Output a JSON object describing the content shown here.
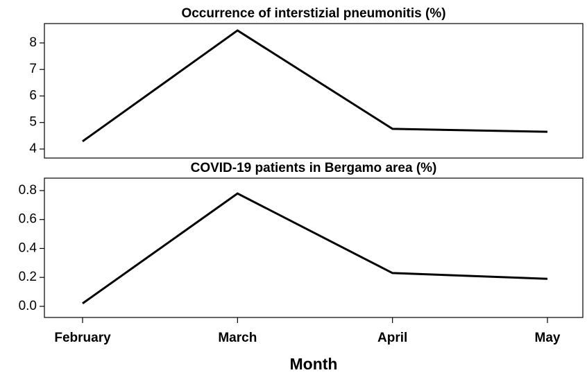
{
  "chart_data": [
    {
      "type": "line",
      "title": "Occurrence of interstizial pneumonitis (%)",
      "values": [
        4.29,
        8.47,
        4.76,
        4.65
      ],
      "color": "#000000",
      "ylim": [
        3.66,
        8.73
      ],
      "yticks": [
        4,
        5,
        6,
        7,
        8
      ]
    },
    {
      "type": "line",
      "title": "COVID-19 patients in Bergamo area (%)",
      "categories": [
        "February",
        "March",
        "April",
        "May"
      ],
      "xlabel": "Month",
      "values": [
        0.02,
        0.78,
        0.23,
        0.19
      ],
      "color": "#000000",
      "ylim": [
        -0.077,
        0.886
      ],
      "yticks": [
        {
          "value": 0,
          "label": "0.0"
        },
        0.2,
        0.4,
        0.6,
        0.8
      ]
    }
  ]
}
